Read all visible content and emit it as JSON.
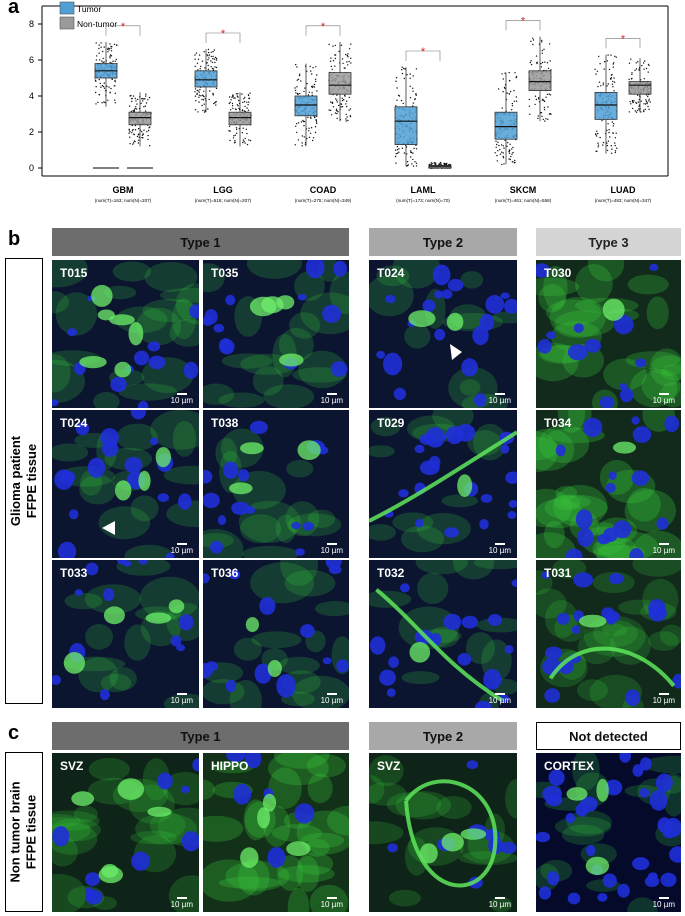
{
  "panels": {
    "a": "a",
    "b": "b",
    "c": "c"
  },
  "chart_data": {
    "type": "box",
    "legend": [
      {
        "name": "Tumor",
        "color": "#4f9fd6"
      },
      {
        "name": "Non-tumor",
        "color": "#9a9a9a"
      }
    ],
    "legend_position": "top-left",
    "ylim": [
      0,
      9
    ],
    "yticks": [
      0,
      2,
      4,
      6,
      8
    ],
    "significance_marker": "*",
    "groups": [
      {
        "name": "GBM",
        "sub": "(num(T)=163; num(N)=207)",
        "tumor": {
          "q1": 5.0,
          "median": 5.4,
          "q3": 5.8,
          "whisker_low": 3.4,
          "whisker_high": 7.0
        },
        "normal": {
          "q1": 2.4,
          "median": 2.8,
          "q3": 3.1,
          "whisker_low": 1.2,
          "whisker_high": 4.2
        },
        "tumor_zero_line": true,
        "normal_zero_line": true
      },
      {
        "name": "LGG",
        "sub": "(num(T)=518; num(N)=207)",
        "tumor": {
          "q1": 4.5,
          "median": 4.9,
          "q3": 5.4,
          "whisker_low": 3.1,
          "whisker_high": 6.6
        },
        "normal": {
          "q1": 2.4,
          "median": 2.8,
          "q3": 3.1,
          "whisker_low": 1.2,
          "whisker_high": 4.2
        }
      },
      {
        "name": "COAD",
        "sub": "(num(T)=275; num(N)=349)",
        "tumor": {
          "q1": 2.9,
          "median": 3.5,
          "q3": 4.0,
          "whisker_low": 1.2,
          "whisker_high": 5.8
        },
        "normal": {
          "q1": 4.1,
          "median": 4.6,
          "q3": 5.3,
          "whisker_low": 2.6,
          "whisker_high": 7.0
        }
      },
      {
        "name": "LAML",
        "sub": "(num(T)=173; num(N)=70)",
        "tumor": {
          "q1": 1.3,
          "median": 2.6,
          "q3": 3.4,
          "whisker_low": 0.1,
          "whisker_high": 5.6
        },
        "normal": {
          "q1": 0.0,
          "median": 0.1,
          "q3": 0.15,
          "whisker_low": 0.0,
          "whisker_high": 0.3
        }
      },
      {
        "name": "SKCM",
        "sub": "(num(T)=461; num(N)=558)",
        "tumor": {
          "q1": 1.6,
          "median": 2.3,
          "q3": 3.1,
          "whisker_low": 0.2,
          "whisker_high": 5.3
        },
        "normal": {
          "q1": 4.3,
          "median": 4.8,
          "q3": 5.4,
          "whisker_low": 2.6,
          "whisker_high": 7.3
        }
      },
      {
        "name": "LUAD",
        "sub": "(num(T)=483; num(N)=347)",
        "tumor": {
          "q1": 2.7,
          "median": 3.5,
          "q3": 4.2,
          "whisker_low": 0.8,
          "whisker_high": 6.3
        },
        "normal": {
          "q1": 4.1,
          "median": 4.6,
          "q3": 4.8,
          "whisker_low": 3.1,
          "whisker_high": 6.1
        }
      }
    ]
  },
  "panel_b": {
    "side_label": [
      "Glioma patient",
      "FFPE tissue"
    ],
    "headers": {
      "type1": "Type 1",
      "type2": "Type 2",
      "type3": "Type 3"
    },
    "tiles": [
      "T015",
      "T035",
      "T024",
      "T030",
      "T024",
      "T038",
      "T029",
      "T034",
      "T033",
      "T036",
      "T032",
      "T031"
    ],
    "scale": "10 µm"
  },
  "panel_c": {
    "side_label": [
      "Non tumor brain",
      "FFPE tissue"
    ],
    "headers": {
      "type1": "Type 1",
      "type2": "Type 2",
      "nd": "Not detected"
    },
    "tiles": [
      "SVZ",
      "HIPPO",
      "SVZ",
      "CORTEX"
    ],
    "scale": "10 µm"
  },
  "colors": {
    "tumor": "#4f9fd6",
    "normal": "#9a9a9a",
    "sig": "#d62020",
    "dapi": "#1f2fd8",
    "stain": "#38c83a"
  }
}
